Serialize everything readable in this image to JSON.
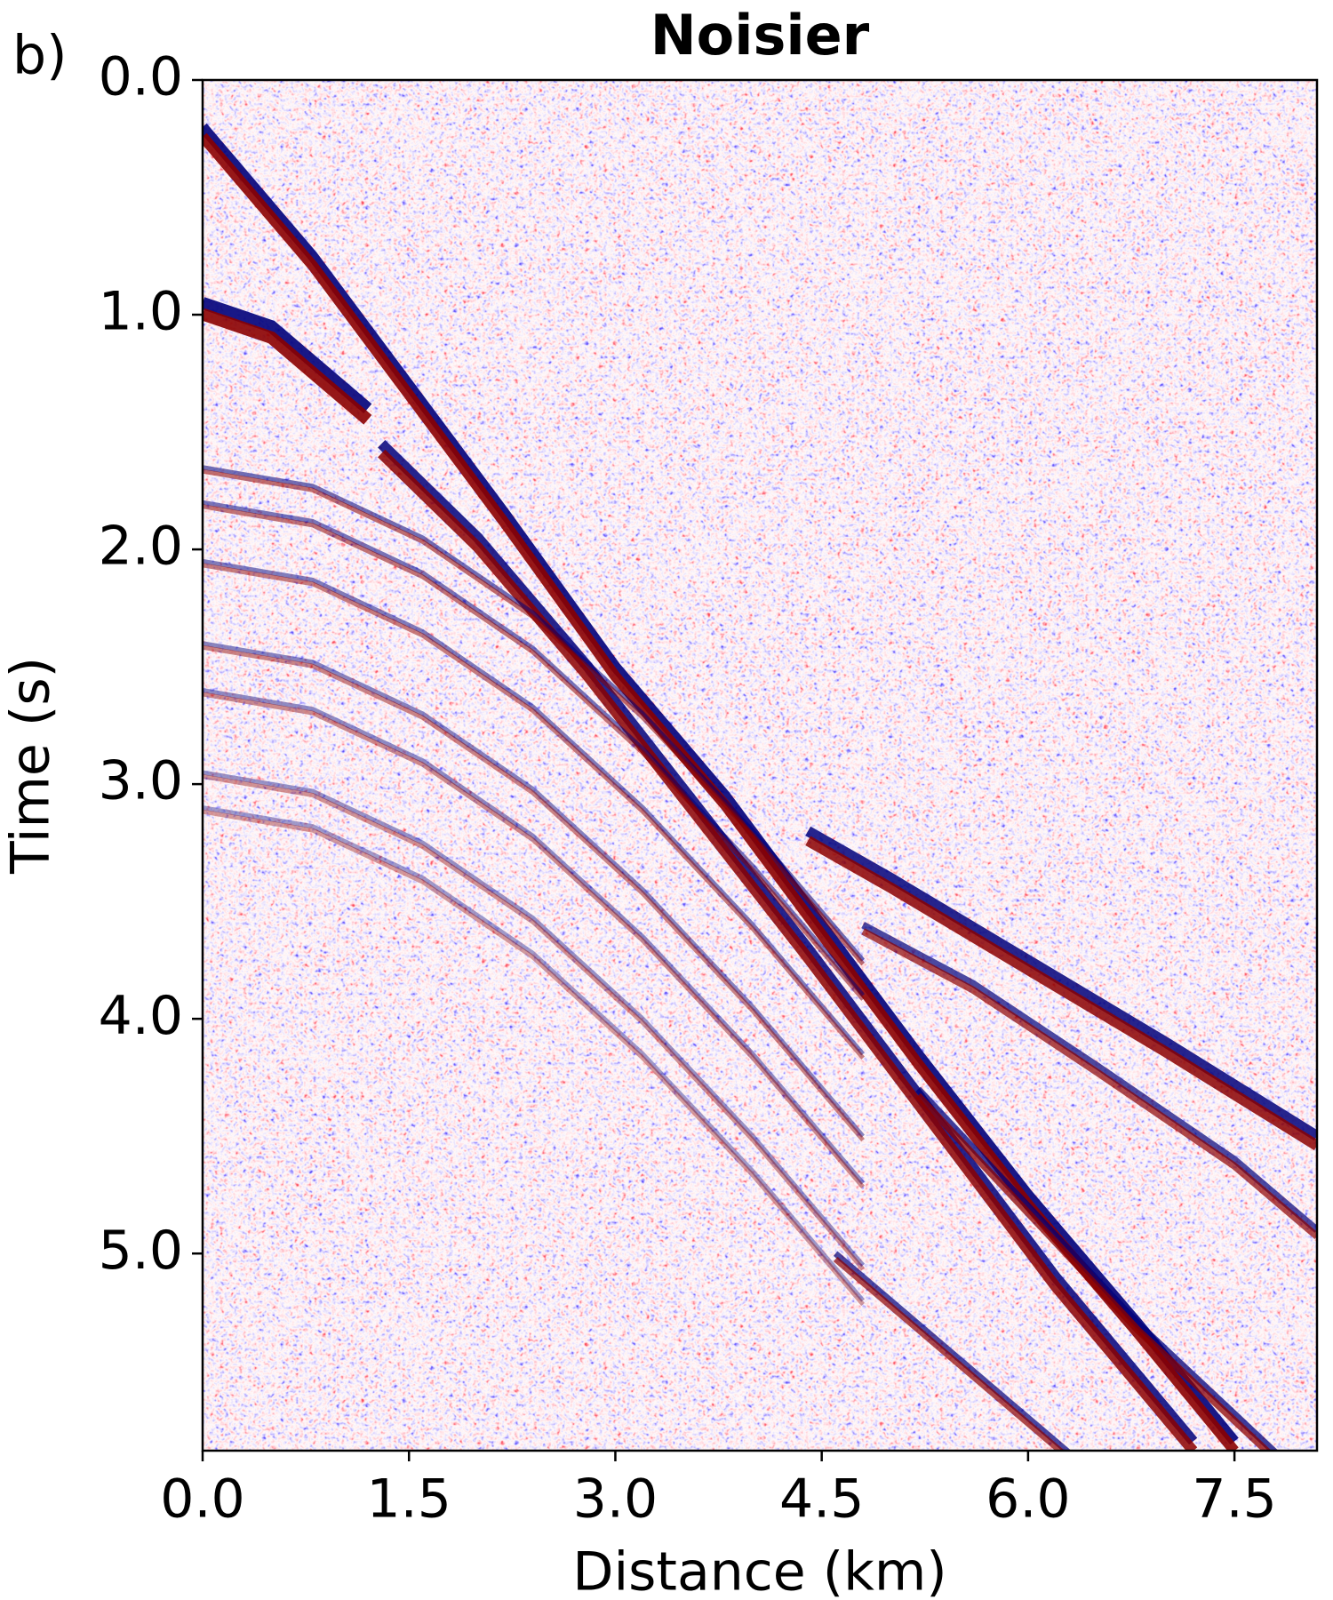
{
  "chart_data": {
    "type": "image",
    "title": "Noisier",
    "panel_label": "b)",
    "xlabel": "Distance (km)",
    "ylabel": "Time (s)",
    "xlim": [
      0,
      8.1
    ],
    "ylim": [
      5.84,
      0
    ],
    "xticks": [
      {
        "value": 0,
        "label": "0.0"
      },
      {
        "value": 1.5,
        "label": "1.5"
      },
      {
        "value": 3,
        "label": "3.0"
      },
      {
        "value": 4.5,
        "label": "4.5"
      },
      {
        "value": 6,
        "label": "6.0"
      },
      {
        "value": 7.5,
        "label": "7.5"
      }
    ],
    "yticks": [
      {
        "value": 0,
        "label": "0.0"
      },
      {
        "value": 1,
        "label": "1.0"
      },
      {
        "value": 2,
        "label": "2.0"
      },
      {
        "value": 3,
        "label": "3.0"
      },
      {
        "value": 4,
        "label": "4.0"
      },
      {
        "value": 5,
        "label": "5.0"
      }
    ]
  }
}
